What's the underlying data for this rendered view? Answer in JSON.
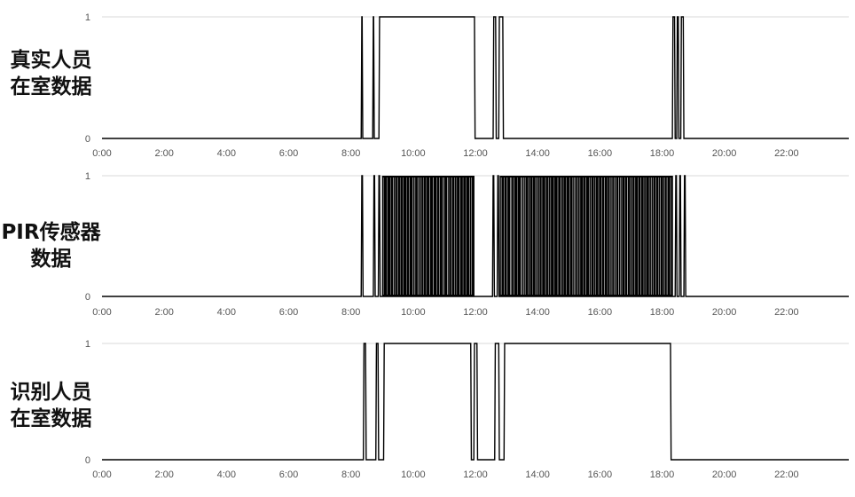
{
  "chart_data": [
    {
      "type": "line",
      "row_label": [
        "真实人员",
        "在室数据"
      ],
      "x_ticks": [
        "0:00",
        "2:00",
        "4:00",
        "6:00",
        "8:00",
        "10:00",
        "12:00",
        "14:00",
        "16:00",
        "18:00",
        "20:00",
        "22:00"
      ],
      "y_ticks": [
        "0",
        "1"
      ],
      "xlim": [
        0,
        24
      ],
      "ylim": [
        0,
        1
      ],
      "series": [
        {
          "x": [
            0,
            8.33,
            8.35,
            8.36,
            8.38,
            8.7,
            8.72,
            8.73,
            8.75,
            8.9,
            8.92,
            11.97,
            11.99,
            12.57,
            12.59,
            12.65,
            12.67,
            12.75,
            12.77,
            12.88,
            12.9,
            18.33,
            18.35,
            18.4,
            18.42,
            18.47,
            18.49,
            18.52,
            18.54,
            18.6,
            18.62,
            18.68,
            18.7,
            24
          ],
          "y": [
            0,
            0,
            1,
            1,
            0,
            0,
            1,
            1,
            0,
            0,
            1,
            1,
            0,
            0,
            1,
            1,
            0,
            0,
            1,
            1,
            0,
            0,
            1,
            1,
            0,
            0,
            1,
            1,
            0,
            0,
            1,
            1,
            0,
            0
          ]
        }
      ]
    },
    {
      "type": "line",
      "row_label": [
        "PIR传感器",
        "数据"
      ],
      "x_ticks": [
        "0:00",
        "2:00",
        "4:00",
        "6:00",
        "8:00",
        "10:00",
        "12:00",
        "14:00",
        "16:00",
        "18:00",
        "20:00",
        "22:00"
      ],
      "y_ticks": [
        "0",
        "1"
      ],
      "xlim": [
        0,
        24
      ],
      "ylim": [
        0,
        1
      ],
      "dense_blocks": [
        [
          9.0,
          11.97
        ],
        [
          12.78,
          18.35
        ]
      ],
      "series": [
        {
          "x": [
            0,
            8.33,
            8.35,
            8.37,
            8.39,
            8.72,
            8.74,
            8.76,
            8.78,
            8.88,
            8.9,
            8.92,
            8.94,
            9.0,
            11.97,
            12.55,
            12.57,
            12.59,
            12.61,
            12.7,
            12.72,
            12.74,
            12.76,
            12.78,
            18.35,
            18.42,
            18.44,
            18.46,
            18.48,
            18.55,
            18.57,
            18.59,
            18.61,
            18.7,
            18.72,
            18.74,
            18.76,
            24
          ],
          "y": [
            0,
            0,
            1,
            1,
            0,
            0,
            1,
            1,
            0,
            0,
            1,
            1,
            0,
            0,
            0,
            0,
            1,
            1,
            0,
            0,
            1,
            1,
            0,
            0,
            0,
            0,
            1,
            1,
            0,
            0,
            1,
            1,
            0,
            0,
            1,
            1,
            0,
            0
          ]
        }
      ]
    },
    {
      "type": "line",
      "row_label": [
        "识别人员",
        "在室数据"
      ],
      "x_ticks": [
        "0:00",
        "2:00",
        "4:00",
        "6:00",
        "8:00",
        "10:00",
        "12:00",
        "14:00",
        "16:00",
        "18:00",
        "20:00",
        "22:00"
      ],
      "y_ticks": [
        "0",
        "1"
      ],
      "xlim": [
        0,
        24
      ],
      "ylim": [
        0,
        1
      ],
      "series": [
        {
          "x": [
            0,
            8.4,
            8.42,
            8.47,
            8.49,
            8.8,
            8.82,
            8.87,
            8.89,
            9.05,
            9.07,
            11.85,
            11.87,
            11.95,
            11.97,
            12.05,
            12.07,
            12.62,
            12.64,
            12.75,
            12.77,
            12.92,
            12.94,
            18.27,
            18.29,
            18.35,
            18.37,
            24
          ],
          "y": [
            0,
            0,
            1,
            1,
            0,
            0,
            1,
            1,
            0,
            0,
            1,
            1,
            0,
            0,
            1,
            1,
            0,
            0,
            1,
            1,
            0,
            0,
            1,
            1,
            0,
            0,
            0,
            0
          ]
        }
      ]
    }
  ]
}
